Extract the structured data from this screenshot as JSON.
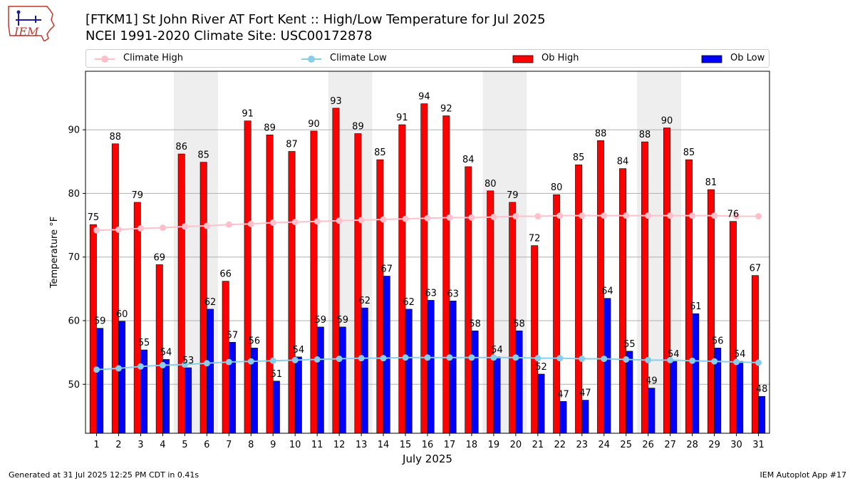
{
  "header": {
    "title_line1": "[FTKM1] St John River  AT Fort Kent :: High/Low Temperature for Jul 2025",
    "title_line2": "NCEI 1991-2020 Climate Site: USC00172878",
    "logo_text": "IEM"
  },
  "footer": {
    "left": "Generated at 31 Jul 2025 12:25 PM CDT in 0.41s",
    "right": "IEM Autoplot App #17"
  },
  "legend": {
    "climate_high": "Climate High",
    "climate_low": "Climate Low",
    "ob_high": "Ob High",
    "ob_low": "Ob Low"
  },
  "colors": {
    "ob_high": "#ff0000",
    "ob_low": "#0000ff",
    "climate_high": "#ffc0cb",
    "climate_low": "#87ceeb",
    "weekend_shade": "#eeeeee",
    "grid": "#b0b0b0"
  },
  "chart_data": {
    "type": "bar",
    "title": "[FTKM1] St John River  AT Fort Kent :: High/Low Temperature for Jul 2025",
    "subtitle": "NCEI 1991-2020 Climate Site: USC00172878",
    "xlabel": "July 2025",
    "ylabel": "Temperature °F",
    "ylim": [
      42.3,
      99.2
    ],
    "yticks": [
      50,
      60,
      70,
      80,
      90
    ],
    "grid": "horizontal",
    "legend_position": "top",
    "categories": [
      "1",
      "2",
      "3",
      "4",
      "5",
      "6",
      "7",
      "8",
      "9",
      "10",
      "11",
      "12",
      "13",
      "14",
      "15",
      "16",
      "17",
      "18",
      "19",
      "20",
      "21",
      "22",
      "23",
      "24",
      "25",
      "26",
      "27",
      "28",
      "29",
      "30",
      "31"
    ],
    "shaded_days": [
      [
        5,
        6
      ],
      [
        12,
        13
      ],
      [
        19,
        20
      ],
      [
        26,
        27
      ]
    ],
    "series": [
      {
        "name": "Ob High",
        "kind": "bar",
        "values": [
          75.1,
          87.8,
          78.6,
          68.8,
          86.2,
          84.9,
          66.2,
          91.4,
          89.2,
          86.6,
          89.8,
          93.4,
          89.4,
          85.3,
          90.8,
          94.1,
          92.2,
          84.2,
          80.4,
          78.6,
          71.8,
          79.8,
          84.5,
          88.3,
          83.9,
          88.1,
          90.3,
          85.3,
          80.6,
          75.6,
          67.1
        ],
        "labels": [
          "75",
          "88",
          "79",
          "69",
          "86",
          "85",
          "66",
          "91",
          "89",
          "87",
          "90",
          "93",
          "89",
          "85",
          "91",
          "94",
          "92",
          "84",
          "80",
          "79",
          "72",
          "80",
          "85",
          "88",
          "84",
          "88",
          "90",
          "85",
          "81",
          "76",
          "67"
        ]
      },
      {
        "name": "Ob Low",
        "kind": "bar",
        "values": [
          58.8,
          59.9,
          55.4,
          53.9,
          52.6,
          61.8,
          56.6,
          55.7,
          50.5,
          54.3,
          59.0,
          59.0,
          62.0,
          67.0,
          61.8,
          63.2,
          63.1,
          58.4,
          54.3,
          58.4,
          51.6,
          47.3,
          47.5,
          63.5,
          55.2,
          49.4,
          53.6,
          61.1,
          55.7,
          53.6,
          48.1
        ],
        "labels": [
          "59",
          "60",
          "55",
          "54",
          "53",
          "62",
          "57",
          "56",
          "51",
          "54",
          "59",
          "59",
          "62",
          "67",
          "62",
          "63",
          "63",
          "58",
          "54",
          "58",
          "52",
          "47",
          "47",
          "64",
          "55",
          "49",
          "54",
          "61",
          "56",
          "54",
          "48"
        ]
      },
      {
        "name": "Climate High",
        "kind": "line",
        "values": [
          74.2,
          74.3,
          74.5,
          74.6,
          74.8,
          74.9,
          75.1,
          75.2,
          75.4,
          75.5,
          75.6,
          75.7,
          75.8,
          75.9,
          76.0,
          76.1,
          76.2,
          76.2,
          76.3,
          76.4,
          76.4,
          76.5,
          76.5,
          76.5,
          76.5,
          76.5,
          76.5,
          76.5,
          76.5,
          76.4,
          76.4
        ]
      },
      {
        "name": "Climate Low",
        "kind": "line",
        "values": [
          52.3,
          52.5,
          52.8,
          53.0,
          53.1,
          53.3,
          53.5,
          53.6,
          53.7,
          53.8,
          53.9,
          54.0,
          54.1,
          54.1,
          54.2,
          54.2,
          54.2,
          54.2,
          54.2,
          54.2,
          54.1,
          54.1,
          54.0,
          54.0,
          53.9,
          53.8,
          53.8,
          53.7,
          53.6,
          53.5,
          53.4
        ]
      }
    ]
  }
}
